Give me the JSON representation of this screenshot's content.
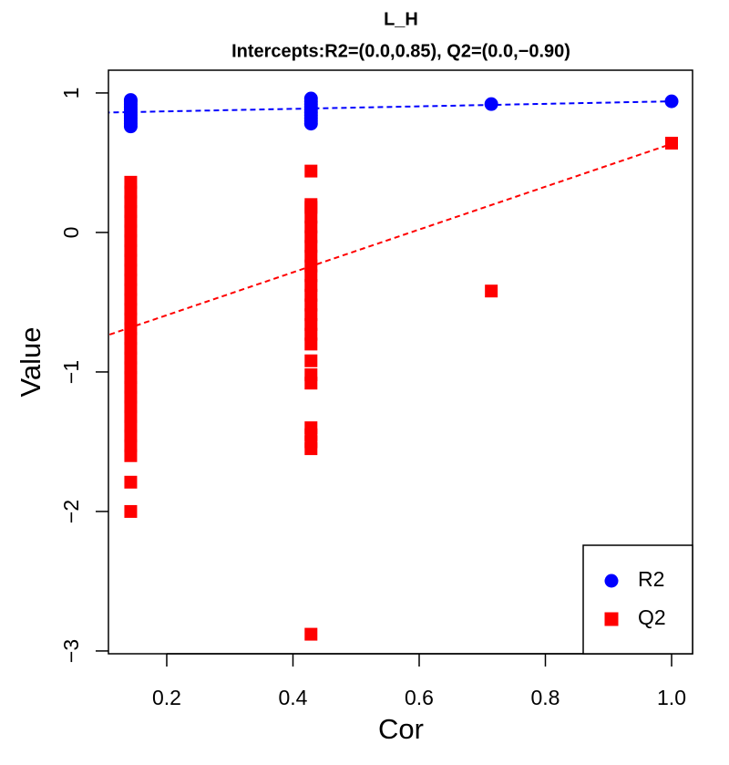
{
  "chart_data": {
    "type": "scatter",
    "title": "L_H",
    "subtitle": "Intercepts:R2=(0.0,0.85), Q2=(0.0,−0.90)",
    "x_label": "Cor",
    "y_label": "Value",
    "xlim": [
      0.1076,
      1.0332
    ],
    "ylim": [
      -3.02,
      1.163
    ],
    "xticks": [
      0.2,
      0.4,
      0.6,
      0.8,
      {
        "value": 1.0,
        "label": "1.0"
      }
    ],
    "yticks": [
      {
        "value": -3,
        "label": "−3"
      },
      {
        "value": -2,
        "label": "−2"
      },
      {
        "value": -1,
        "label": "−1"
      },
      0,
      1
    ],
    "legend": "bottom-right",
    "series": [
      {
        "name": "R2",
        "color": "#0000ff",
        "marker": "circle",
        "x": [
          0.1429,
          0.1429,
          0.1429,
          0.1429,
          0.1429,
          0.1429,
          0.1429,
          0.1429,
          0.1429,
          0.1429,
          0.1429,
          0.4286,
          0.4286,
          0.4286,
          0.4286,
          0.4286,
          0.4286,
          0.4286,
          0.4286,
          0.4286,
          0.4286,
          0.7143,
          1.0
        ],
        "values": [
          0.76,
          0.78,
          0.8,
          0.82,
          0.84,
          0.86,
          0.88,
          0.9,
          0.92,
          0.94,
          0.95,
          0.78,
          0.8,
          0.82,
          0.84,
          0.86,
          0.88,
          0.9,
          0.92,
          0.94,
          0.96,
          0.92,
          0.94
        ]
      },
      {
        "name": "Q2",
        "color": "#ff0000",
        "marker": "square",
        "x": [
          0.1429,
          0.1429,
          0.1429,
          0.1429,
          0.1429,
          0.1429,
          0.1429,
          0.1429,
          0.1429,
          0.1429,
          0.1429,
          0.1429,
          0.1429,
          0.1429,
          0.1429,
          0.1429,
          0.1429,
          0.1429,
          0.1429,
          0.1429,
          0.1429,
          0.1429,
          0.1429,
          0.1429,
          0.1429,
          0.1429,
          0.1429,
          0.1429,
          0.1429,
          0.1429,
          0.1429,
          0.4286,
          0.4286,
          0.4286,
          0.4286,
          0.4286,
          0.4286,
          0.4286,
          0.4286,
          0.4286,
          0.4286,
          0.4286,
          0.4286,
          0.4286,
          0.4286,
          0.4286,
          0.4286,
          0.4286,
          0.4286,
          0.4286,
          0.4286,
          0.4286,
          0.4286,
          0.4286,
          0.4286,
          0.4286,
          0.7143,
          1.0
        ],
        "values": [
          -2.0,
          -1.79,
          -1.6,
          -1.53,
          -1.46,
          -1.39,
          -1.32,
          -1.25,
          -1.18,
          -1.11,
          -1.04,
          -0.97,
          -0.9,
          -0.83,
          -0.76,
          -0.69,
          -0.62,
          -0.55,
          -0.48,
          -0.41,
          -0.34,
          -0.27,
          -0.2,
          -0.13,
          -0.06,
          0.01,
          0.08,
          0.15,
          0.22,
          0.29,
          0.36,
          -2.88,
          -1.55,
          -1.5,
          -1.45,
          -1.4,
          -1.08,
          -1.02,
          -0.92,
          -0.8,
          -0.73,
          -0.66,
          -0.59,
          -0.52,
          -0.45,
          -0.38,
          -0.31,
          -0.24,
          -0.17,
          -0.1,
          -0.03,
          0.04,
          0.11,
          0.18,
          0.2,
          0.44,
          -0.42,
          0.64
        ]
      }
    ],
    "fit_lines": [
      {
        "color": "#0000ff",
        "x": [
          0,
          1.0
        ],
        "values": [
          0.85,
          0.94
        ]
      },
      {
        "color": "#ff0000",
        "x": [
          0,
          1.0
        ],
        "values": [
          -0.9,
          0.635
        ]
      }
    ]
  }
}
